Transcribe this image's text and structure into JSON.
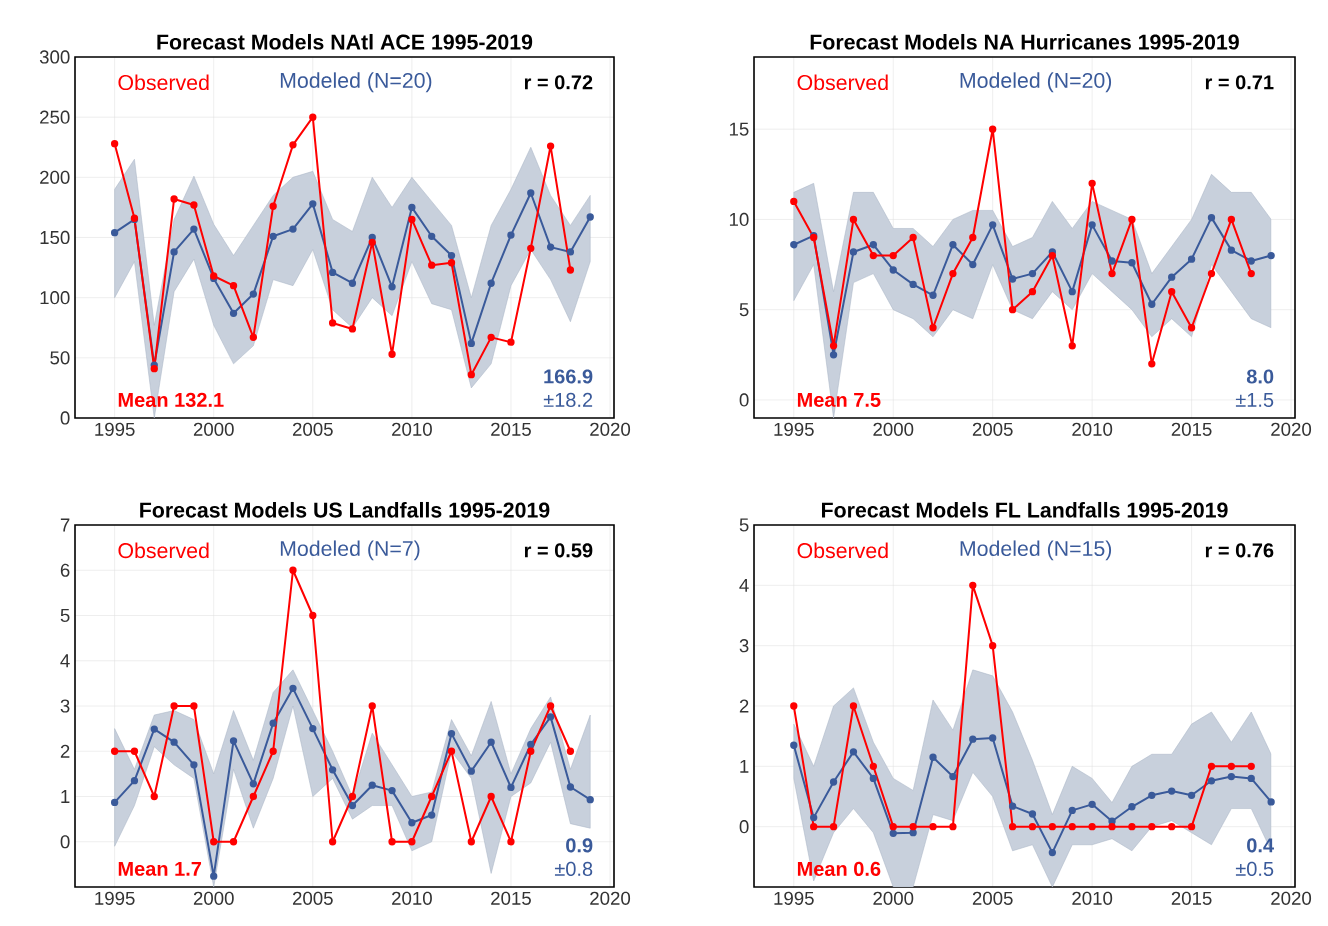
{
  "chart_data": [
    {
      "type": "line",
      "title": "Forecast Models  NAtl ACE  1995-2019",
      "x": [
        1995,
        1996,
        1997,
        1998,
        1999,
        2000,
        2001,
        2002,
        2003,
        2004,
        2005,
        2006,
        2007,
        2008,
        2009,
        2010,
        2011,
        2012,
        2013,
        2014,
        2015,
        2016,
        2017,
        2018,
        2019
      ],
      "series": [
        {
          "name": "Observed",
          "color": "#ff0000",
          "values": [
            228,
            166,
            41,
            182,
            177,
            118,
            110,
            67,
            176,
            227,
            250,
            79,
            74,
            146,
            53,
            165,
            127,
            129,
            36,
            67,
            63,
            141,
            226,
            123,
            null
          ]
        },
        {
          "name": "Modeled (N=20)",
          "color": "#3a5a9a",
          "values": [
            154,
            165,
            44,
            138,
            157,
            116,
            87,
            103,
            151,
            157,
            178,
            121,
            112,
            150,
            109,
            175,
            151,
            135,
            62,
            112,
            152,
            187,
            142,
            138,
            167
          ],
          "lower": [
            100,
            130,
            0,
            105,
            132,
            77,
            45,
            60,
            115,
            110,
            140,
            90,
            75,
            100,
            85,
            130,
            95,
            90,
            25,
            45,
            110,
            140,
            115,
            80,
            130
          ],
          "upper": [
            190,
            215,
            77,
            165,
            201,
            161,
            135,
            160,
            185,
            200,
            205,
            165,
            155,
            200,
            175,
            200,
            180,
            160,
            100,
            160,
            190,
            225,
            185,
            160,
            185
          ]
        }
      ],
      "xlim": [
        1993,
        2020.2
      ],
      "ylim": [
        0,
        300
      ],
      "xticks": [
        1995,
        2000,
        2005,
        2010,
        2015,
        2020
      ],
      "yticks": [
        0,
        50,
        100,
        150,
        200,
        250,
        300
      ],
      "grid": true,
      "legend": "top",
      "marker": "circle",
      "line_style": "solid",
      "annotations": [
        "r = 0.72",
        "Mean 132.1",
        "166.9",
        "±18.2"
      ]
    },
    {
      "type": "line",
      "title": "Forecast Models  NA Hurricanes  1995-2019",
      "x": [
        1995,
        1996,
        1997,
        1998,
        1999,
        2000,
        2001,
        2002,
        2003,
        2004,
        2005,
        2006,
        2007,
        2008,
        2009,
        2010,
        2011,
        2012,
        2013,
        2014,
        2015,
        2016,
        2017,
        2018,
        2019
      ],
      "series": [
        {
          "name": "Observed",
          "color": "#ff0000",
          "values": [
            11,
            9,
            3,
            10,
            8,
            8,
            9,
            4,
            7,
            9,
            15,
            5,
            6,
            8,
            3,
            12,
            7,
            10,
            2,
            6,
            4,
            7,
            10,
            7,
            null
          ]
        },
        {
          "name": "Modeled (N=20)",
          "color": "#3a5a9a",
          "values": [
            8.6,
            9.1,
            2.5,
            8.2,
            8.6,
            7.2,
            6.4,
            5.8,
            8.6,
            7.5,
            9.7,
            6.7,
            7.0,
            8.2,
            6.0,
            9.7,
            7.7,
            7.6,
            5.3,
            6.8,
            7.8,
            10.1,
            8.3,
            7.7,
            8.0
          ],
          "lower": [
            5.5,
            7.5,
            -1,
            6.5,
            7,
            5,
            4.5,
            3.5,
            5,
            4.5,
            7.5,
            5,
            4.5,
            6,
            5,
            7,
            6,
            5,
            3.5,
            4.5,
            3.5,
            7.5,
            6,
            4.5,
            4
          ],
          "upper": [
            11.5,
            12,
            6,
            11.5,
            11.5,
            9.5,
            9.5,
            8.5,
            10,
            10.5,
            10.5,
            8.5,
            9,
            11,
            9.5,
            11,
            10.5,
            10,
            7,
            8.5,
            10,
            12.5,
            11.5,
            11.5,
            10
          ]
        }
      ],
      "xlim": [
        1993,
        2020.2
      ],
      "ylim": [
        -1,
        19
      ],
      "xticks": [
        1995,
        2000,
        2005,
        2010,
        2015,
        2020
      ],
      "yticks": [
        0,
        5,
        10,
        15
      ],
      "grid": true,
      "legend": "top",
      "marker": "circle",
      "line_style": "solid",
      "annotations": [
        "r = 0.71",
        "Mean 7.5",
        "8.0",
        "±1.5"
      ]
    },
    {
      "type": "line",
      "title": "Forecast Models  US Landfalls  1995-2019",
      "x": [
        1995,
        1996,
        1997,
        1998,
        1999,
        2000,
        2001,
        2002,
        2003,
        2004,
        2005,
        2006,
        2007,
        2008,
        2009,
        2010,
        2011,
        2012,
        2013,
        2014,
        2015,
        2016,
        2017,
        2018,
        2019
      ],
      "series": [
        {
          "name": "Observed",
          "color": "#ff0000",
          "values": [
            2,
            2,
            1,
            3,
            3,
            0,
            0,
            1,
            2,
            6,
            5,
            0,
            1,
            3,
            0,
            0,
            1,
            2,
            0,
            1,
            0,
            2,
            3,
            2,
            null
          ]
        },
        {
          "name": "Modeled (N=7)",
          "color": "#3a5a9a",
          "values": [
            0.87,
            1.35,
            2.49,
            2.2,
            1.7,
            -0.76,
            2.23,
            1.28,
            2.62,
            3.39,
            2.5,
            1.59,
            0.8,
            1.25,
            1.13,
            0.42,
            0.59,
            2.39,
            1.56,
            2.2,
            1.2,
            2.15,
            2.76,
            1.21,
            0.93
          ],
          "lower": [
            -0.1,
            0.8,
            2.1,
            1.7,
            1.4,
            -1,
            1.6,
            0.3,
            1.4,
            3.0,
            1,
            1.4,
            0.5,
            0.8,
            0.8,
            -0.2,
            0,
            2.0,
            1.4,
            -0.7,
            1,
            1.3,
            2.2,
            0.4,
            0.3
          ],
          "upper": [
            2.5,
            1.6,
            2.8,
            2.9,
            2.7,
            1.5,
            2.9,
            1.8,
            3.3,
            3.8,
            2.9,
            2.0,
            1.0,
            2.4,
            1.7,
            1,
            1.1,
            2.7,
            1.9,
            3.1,
            1.5,
            2.5,
            3.2,
            1.6,
            2.8
          ]
        }
      ],
      "xlim": [
        1993,
        2020.2
      ],
      "ylim": [
        -1,
        7
      ],
      "xticks": [
        1995,
        2000,
        2005,
        2010,
        2015,
        2020
      ],
      "yticks": [
        0,
        1,
        2,
        3,
        4,
        5,
        6,
        7
      ],
      "grid": true,
      "legend": "top",
      "marker": "circle",
      "line_style": "solid",
      "annotations": [
        "r = 0.59",
        "Mean 1.7",
        "0.9",
        "±0.8"
      ]
    },
    {
      "type": "line",
      "title": "Forecast Models  FL Landfalls  1995-2019",
      "x": [
        1995,
        1996,
        1997,
        1998,
        1999,
        2000,
        2001,
        2002,
        2003,
        2004,
        2005,
        2006,
        2007,
        2008,
        2009,
        2010,
        2011,
        2012,
        2013,
        2014,
        2015,
        2016,
        2017,
        2018,
        2019
      ],
      "series": [
        {
          "name": "Observed",
          "color": "#ff0000",
          "values": [
            2,
            0,
            0,
            2,
            1,
            0,
            0,
            0,
            0,
            4,
            3,
            0,
            0,
            0,
            0,
            0,
            0,
            0,
            0,
            0,
            0,
            1,
            1,
            1,
            null
          ]
        },
        {
          "name": "Modeled (N=15)",
          "color": "#3a5a9a",
          "values": [
            1.35,
            0.15,
            0.74,
            1.24,
            0.8,
            -0.11,
            -0.1,
            1.15,
            0.83,
            1.45,
            1.47,
            0.34,
            0.21,
            -0.43,
            0.27,
            0.37,
            0.09,
            0.33,
            0.52,
            0.59,
            0.52,
            0.76,
            0.83,
            0.8,
            0.41
          ],
          "lower": [
            0.8,
            -0.9,
            -0.1,
            0.3,
            -0.1,
            -1,
            -1,
            0.2,
            0.1,
            0.9,
            0.5,
            -0.4,
            -0.3,
            -1,
            -0.3,
            -0.3,
            -0.2,
            -0.4,
            0,
            0.1,
            -0.1,
            -0.3,
            0.3,
            0.3,
            -0.4
          ],
          "upper": [
            1.7,
            1.0,
            2.0,
            2.3,
            1.4,
            0.8,
            0.6,
            2.1,
            1.6,
            2.6,
            2.5,
            1.9,
            1.1,
            0.2,
            1.0,
            0.8,
            0.4,
            1.0,
            1.2,
            1.2,
            1.7,
            1.9,
            1.4,
            1.9,
            1.2
          ]
        }
      ],
      "xlim": [
        1993,
        2020.2
      ],
      "ylim": [
        -1,
        5
      ],
      "xticks": [
        1995,
        2000,
        2005,
        2010,
        2015,
        2020
      ],
      "yticks": [
        0,
        1,
        2,
        3,
        4,
        5
      ],
      "grid": true,
      "legend": "top",
      "marker": "circle",
      "line_style": "solid",
      "annotations": [
        "r = 0.76",
        "Mean 0.6",
        "0.4",
        "±0.5"
      ]
    }
  ]
}
